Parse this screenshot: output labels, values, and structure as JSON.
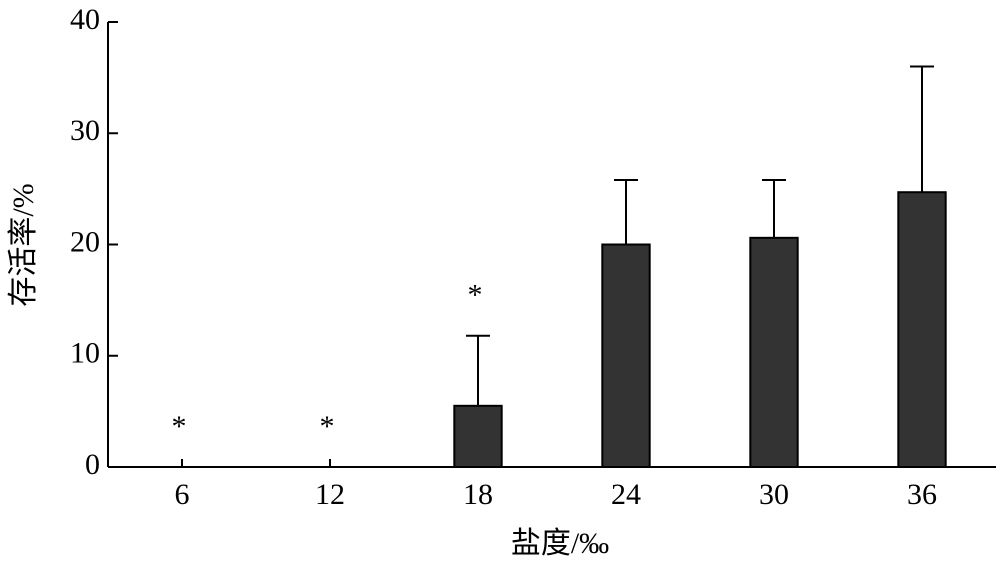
{
  "chart_data": {
    "type": "bar",
    "x_label": "盐度/‰",
    "y_label": "存活率/%",
    "categories": [
      "6",
      "12",
      "18",
      "24",
      "30",
      "36"
    ],
    "values": [
      0,
      0,
      5.5,
      20.0,
      20.6,
      24.7
    ],
    "errors": [
      null,
      null,
      6.3,
      5.8,
      5.2,
      11.3
    ],
    "significance": [
      "*",
      "*",
      "*",
      null,
      null,
      null
    ],
    "color": "#333333",
    "ylim": [
      0,
      40
    ],
    "yticks": [
      0,
      10,
      20,
      30,
      40
    ],
    "grid": false
  }
}
